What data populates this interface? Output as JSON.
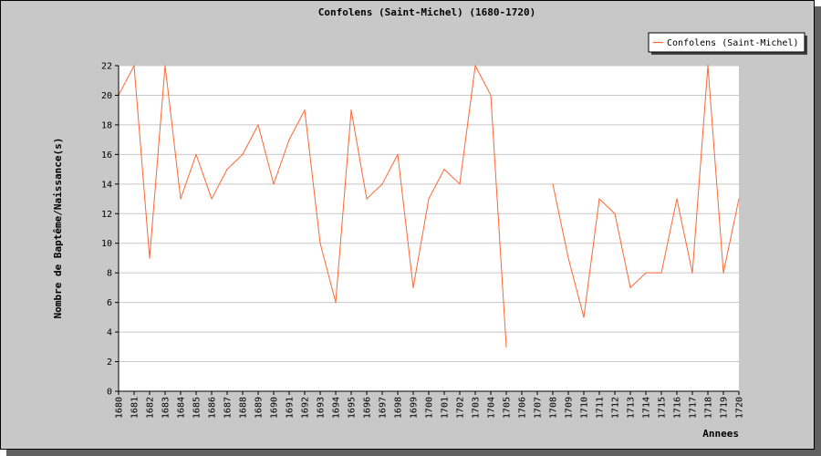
{
  "chart_data": {
    "type": "line",
    "title": "Confolens (Saint-Michel) (1680-1720)",
    "xlabel": "Annees",
    "ylabel": "Nombre de Baptême/Naissance(s)",
    "ylim": [
      0,
      22
    ],
    "y_ticks": [
      0,
      2,
      4,
      6,
      8,
      10,
      12,
      14,
      16,
      18,
      20,
      22
    ],
    "grid": true,
    "legend_position": "top-right",
    "x": [
      "1680",
      "1681",
      "1682",
      "1683",
      "1684",
      "1685",
      "1686",
      "1687",
      "1688",
      "1689",
      "1690",
      "1691",
      "1692",
      "1693",
      "1694",
      "1695",
      "1696",
      "1697",
      "1698",
      "1699",
      "1700",
      "1701",
      "1702",
      "1703",
      "1704",
      "1705",
      "1706",
      "1707",
      "1708",
      "1709",
      "1710",
      "1711",
      "1712",
      "1713",
      "1714",
      "1715",
      "1716",
      "1717",
      "1718",
      "1719",
      "1720"
    ],
    "series": [
      {
        "name": "Confolens (Saint-Michel)",
        "color": "#ff6633",
        "values": [
          20,
          22,
          9,
          22,
          13,
          16,
          13,
          15,
          16,
          18,
          14,
          17,
          19,
          10,
          6,
          19,
          13,
          14,
          16,
          7,
          13,
          15,
          14,
          22,
          20,
          3,
          null,
          null,
          14,
          9,
          5,
          13,
          12,
          7,
          8,
          8,
          13,
          8,
          22,
          8,
          13
        ]
      }
    ]
  }
}
